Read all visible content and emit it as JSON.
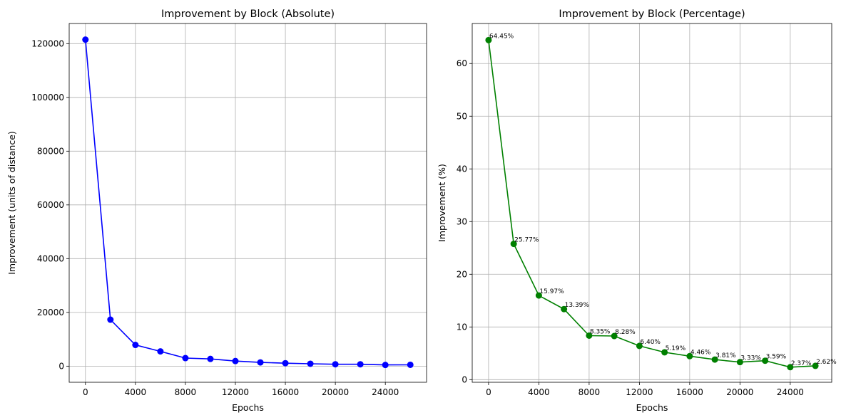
{
  "chart_data": [
    {
      "type": "line",
      "title": "Improvement by Block (Absolute)",
      "xlabel": "Epochs",
      "ylabel": "Improvement (units of distance)",
      "color": "#0000ff",
      "grid": true,
      "xlim": [
        -1300,
        27300
      ],
      "ylim": [
        -6000,
        127500
      ],
      "xticks": [
        0,
        4000,
        8000,
        12000,
        16000,
        20000,
        24000
      ],
      "xtick_labels": [
        "0",
        "4000",
        "8000",
        "12000",
        "16000",
        "20000",
        "24000"
      ],
      "yticks": [
        0,
        20000,
        40000,
        60000,
        80000,
        100000,
        120000
      ],
      "ytick_labels": [
        "0",
        "20000",
        "40000",
        "60000",
        "80000",
        "100000",
        "120000"
      ],
      "x": [
        0,
        2000,
        4000,
        6000,
        8000,
        10000,
        12000,
        14000,
        16000,
        18000,
        20000,
        22000,
        24000,
        26000
      ],
      "values": [
        121500,
        17300,
        7900,
        5500,
        3000,
        2700,
        1900,
        1400,
        1100,
        900,
        700,
        700,
        450,
        500
      ]
    },
    {
      "type": "line",
      "title": "Improvement by Block (Percentage)",
      "xlabel": "Epochs",
      "ylabel": "Improvement (%)",
      "color": "#008000",
      "grid": true,
      "xlim": [
        -1300,
        27300
      ],
      "ylim": [
        -0.5,
        67.6
      ],
      "xticks": [
        0,
        4000,
        8000,
        12000,
        16000,
        20000,
        24000
      ],
      "xtick_labels": [
        "0",
        "4000",
        "8000",
        "12000",
        "16000",
        "20000",
        "24000"
      ],
      "yticks": [
        0,
        10,
        20,
        30,
        40,
        50,
        60
      ],
      "ytick_labels": [
        "0",
        "10",
        "20",
        "30",
        "40",
        "50",
        "60"
      ],
      "x": [
        0,
        2000,
        4000,
        6000,
        8000,
        10000,
        12000,
        14000,
        16000,
        18000,
        20000,
        22000,
        24000,
        26000
      ],
      "values": [
        64.45,
        25.77,
        15.97,
        13.39,
        8.35,
        8.28,
        6.4,
        5.19,
        4.46,
        3.81,
        3.33,
        3.59,
        2.37,
        2.62
      ],
      "point_labels": [
        "64.45%",
        "25.77%",
        "15.97%",
        "13.39%",
        "8.35%",
        "8.28%",
        "6.40%",
        "5.19%",
        "4.46%",
        "3.81%",
        "3.33%",
        "3.59%",
        "2.37%",
        "2.62%"
      ]
    }
  ]
}
